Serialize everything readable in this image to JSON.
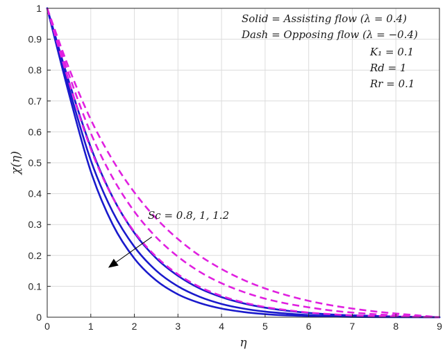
{
  "chart_data": {
    "type": "line",
    "xlabel": "η",
    "ylabel": "χ(η)",
    "xlim": [
      0,
      9
    ],
    "ylim": [
      0,
      1
    ],
    "x_ticks": [
      "0",
      "1",
      "2",
      "3",
      "4",
      "5",
      "6",
      "7",
      "8",
      "9"
    ],
    "y_ticks": [
      "0",
      "0.1",
      "0.2",
      "0.3",
      "0.4",
      "0.5",
      "0.6",
      "0.7",
      "0.8",
      "0.9",
      "1"
    ],
    "grid": true,
    "legend_lines": [
      "Solid = Assisting flow (λ = 0.4)",
      "Dash = Opposing flow (λ = −0.4)"
    ],
    "parameters": [
      "K₁ = 0.1",
      "Rd = 1",
      "Rr = 0.1"
    ],
    "arrow_annotation": {
      "label": "Sc = 0.8, 1, 1.2",
      "from": [
        2.4,
        0.26
      ],
      "to": [
        1.4,
        0.16
      ]
    },
    "x": [
      0,
      0.5,
      1,
      1.5,
      2,
      2.5,
      3,
      3.5,
      4,
      4.5,
      5,
      5.5,
      6,
      6.5,
      7,
      7.5,
      8,
      8.5,
      9
    ],
    "series": [
      {
        "style": "solid",
        "color": "#1a1acc",
        "values": [
          1,
          0.723,
          0.472,
          0.301,
          0.19,
          0.119,
          0.074,
          0.046,
          0.028,
          0.017,
          0.01,
          0.006,
          0.004,
          0.002,
          0.001,
          0.0005,
          0.0002,
          0.0001,
          0
        ]
      },
      {
        "style": "solid",
        "color": "#1a1acc",
        "values": [
          1,
          0.742,
          0.508,
          0.342,
          0.228,
          0.151,
          0.1,
          0.066,
          0.043,
          0.028,
          0.018,
          0.012,
          0.007,
          0.004,
          0.003,
          0.0015,
          0.0008,
          0.0003,
          0
        ]
      },
      {
        "style": "solid",
        "color": "#1a1acc",
        "values": [
          1,
          0.762,
          0.55,
          0.389,
          0.273,
          0.191,
          0.134,
          0.093,
          0.065,
          0.045,
          0.031,
          0.021,
          0.014,
          0.009,
          0.006,
          0.004,
          0.002,
          0.001,
          0
        ]
      },
      {
        "style": "dash",
        "color": "#e020e0",
        "values": [
          1,
          0.761,
          0.545,
          0.388,
          0.276,
          0.196,
          0.139,
          0.098,
          0.069,
          0.048,
          0.033,
          0.023,
          0.015,
          0.01,
          0.006,
          0.004,
          0.002,
          0.001,
          0
        ]
      },
      {
        "style": "dash",
        "color": "#e020e0",
        "values": [
          1,
          0.785,
          0.596,
          0.452,
          0.342,
          0.259,
          0.196,
          0.147,
          0.11,
          0.082,
          0.06,
          0.044,
          0.032,
          0.022,
          0.015,
          0.01,
          0.006,
          0.003,
          0
        ]
      },
      {
        "style": "dash",
        "color": "#e020e0",
        "values": [
          1,
          0.806,
          0.64,
          0.509,
          0.404,
          0.32,
          0.253,
          0.199,
          0.156,
          0.121,
          0.093,
          0.071,
          0.053,
          0.039,
          0.028,
          0.019,
          0.012,
          0.006,
          0
        ]
      }
    ]
  }
}
